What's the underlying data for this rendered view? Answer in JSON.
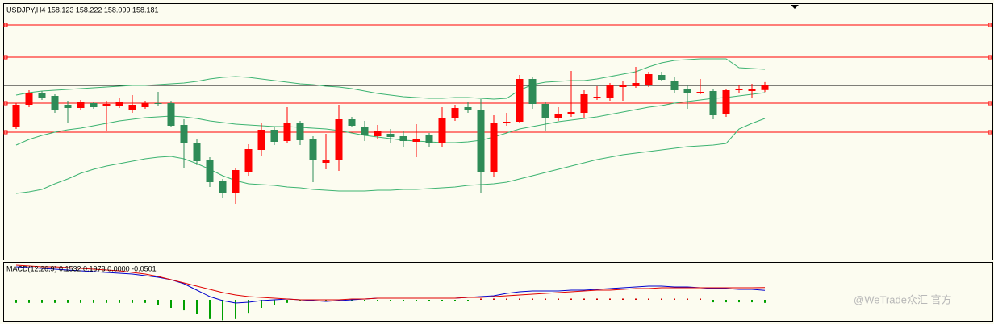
{
  "chart_data": [
    {
      "type": "candlestick",
      "title": "USDJPY,H4  158.123 158.222 158.099 158.181",
      "open": [
        157.661,
        157.941,
        158.081,
        158.051,
        157.941,
        157.901,
        157.961,
        157.931,
        157.931,
        157.881,
        157.911,
        157.961,
        157.961,
        157.691,
        157.471,
        157.251,
        156.991,
        156.841,
        157.111,
        157.381,
        157.631,
        157.491,
        157.721,
        157.511,
        157.221,
        157.251,
        157.761,
        157.671,
        157.551,
        157.581,
        157.551,
        157.481,
        157.561,
        157.461,
        157.781,
        157.911,
        157.871,
        157.101,
        157.711,
        157.731,
        158.261,
        157.951,
        157.771,
        157.831,
        157.841,
        158.031,
        158.021,
        158.161,
        158.171,
        158.181,
        158.311,
        158.241,
        158.131,
        158.091,
        158.111,
        157.821,
        158.121,
        158.111,
        158.123
      ],
      "high": [
        157.961,
        158.121,
        158.111,
        158.071,
        157.991,
        158.001,
        157.981,
        157.991,
        158.021,
        158.061,
        157.991,
        158.101,
        157.991,
        157.761,
        157.521,
        157.291,
        157.021,
        157.151,
        157.451,
        157.721,
        157.671,
        157.911,
        157.741,
        157.551,
        157.581,
        157.941,
        157.791,
        157.741,
        157.691,
        157.641,
        157.621,
        157.701,
        157.591,
        157.911,
        157.941,
        157.971,
        158.011,
        157.811,
        157.841,
        158.311,
        158.291,
        157.981,
        157.911,
        158.361,
        158.121,
        158.171,
        158.211,
        158.231,
        158.411,
        158.351,
        158.351,
        158.291,
        158.191,
        158.261,
        158.141,
        158.141,
        158.181,
        158.201,
        158.222
      ],
      "low": [
        157.641,
        157.911,
        158.001,
        157.841,
        157.721,
        157.871,
        157.891,
        157.621,
        157.901,
        157.841,
        157.891,
        157.931,
        157.661,
        157.161,
        157.191,
        156.921,
        156.781,
        156.711,
        157.061,
        157.311,
        157.441,
        157.461,
        157.441,
        156.981,
        157.141,
        157.121,
        157.661,
        157.491,
        157.521,
        157.461,
        157.421,
        157.291,
        157.411,
        157.411,
        157.741,
        157.841,
        156.841,
        157.041,
        157.681,
        157.711,
        157.891,
        157.621,
        157.741,
        157.791,
        157.781,
        158.001,
        157.991,
        157.991,
        158.151,
        158.161,
        158.231,
        158.091,
        157.891,
        158.071,
        157.761,
        157.791,
        158.091,
        158.021,
        158.099
      ],
      "close": [
        157.941,
        158.081,
        158.031,
        157.871,
        157.901,
        157.971,
        157.911,
        157.951,
        157.971,
        157.941,
        157.961,
        157.951,
        157.681,
        157.471,
        157.241,
        156.981,
        156.841,
        157.131,
        157.391,
        157.631,
        157.481,
        157.721,
        157.501,
        157.251,
        157.261,
        157.761,
        157.681,
        157.571,
        157.611,
        157.541,
        157.491,
        157.521,
        157.471,
        157.781,
        157.901,
        157.871,
        157.101,
        157.721,
        157.731,
        158.261,
        157.951,
        157.771,
        157.831,
        157.851,
        158.071,
        158.041,
        158.181,
        158.181,
        158.211,
        158.321,
        158.251,
        158.121,
        158.091,
        158.101,
        157.811,
        158.121,
        158.141,
        158.141,
        158.181
      ],
      "up_color": "#ff0000",
      "down_color": "#2e8b57",
      "bands": [
        {
          "color": "#3cb371",
          "values": [
            158.061,
            158.091,
            158.111,
            158.121,
            158.131,
            158.141,
            158.151,
            158.161,
            158.171,
            158.181,
            158.181,
            158.191,
            158.201,
            158.211,
            158.231,
            158.261,
            158.281,
            158.291,
            158.281,
            158.261,
            158.241,
            158.221,
            158.201,
            158.191,
            158.171,
            158.161,
            158.141,
            158.111,
            158.081,
            158.061,
            158.041,
            158.031,
            158.021,
            158.021,
            158.031,
            158.031,
            158.021,
            158.011,
            158.021,
            158.121,
            158.191,
            158.221,
            158.231,
            158.241,
            158.241,
            158.261,
            158.291,
            158.321,
            158.351,
            158.411,
            158.461,
            158.491,
            158.501,
            158.511,
            158.511,
            158.511,
            158.401,
            158.391,
            158.381
          ]
        },
        {
          "color": "#3cb371",
          "values": [
            157.441,
            157.511,
            157.561,
            157.601,
            157.631,
            157.651,
            157.681,
            157.711,
            157.741,
            157.761,
            157.781,
            157.791,
            157.801,
            157.791,
            157.771,
            157.741,
            157.721,
            157.701,
            157.691,
            157.681,
            157.671,
            157.671,
            157.661,
            157.651,
            157.641,
            157.621,
            157.591,
            157.561,
            157.541,
            157.521,
            157.501,
            157.491,
            157.481,
            157.471,
            157.471,
            157.481,
            157.501,
            157.541,
            157.591,
            157.641,
            157.671,
            157.701,
            157.731,
            157.751,
            157.771,
            157.791,
            157.821,
            157.851,
            157.881,
            157.911,
            157.931,
            157.961,
            157.981,
            158.001,
            158.021,
            158.031,
            158.051,
            158.071,
            158.091
          ]
        },
        {
          "color": "#3cb371",
          "values": [
            156.841,
            156.861,
            156.891,
            156.961,
            157.021,
            157.091,
            157.141,
            157.181,
            157.211,
            157.241,
            157.271,
            157.291,
            157.301,
            157.271,
            157.211,
            157.141,
            157.061,
            157.001,
            156.961,
            156.951,
            156.941,
            156.921,
            156.911,
            156.891,
            156.881,
            156.871,
            156.871,
            156.871,
            156.881,
            156.881,
            156.891,
            156.891,
            156.901,
            156.911,
            156.921,
            156.941,
            156.951,
            156.961,
            156.981,
            157.021,
            157.061,
            157.101,
            157.141,
            157.181,
            157.221,
            157.261,
            157.291,
            157.321,
            157.341,
            157.361,
            157.381,
            157.401,
            157.421,
            157.431,
            157.441,
            157.461,
            157.641,
            157.711,
            157.771
          ]
        }
      ],
      "levels": [
        158.931,
        158.531,
        157.961,
        157.601
      ],
      "levels_color": "#ff0000",
      "bid": 158.181,
      "bid_color": "#000000",
      "ylim": [
        156.021,
        159.161
      ]
    },
    {
      "type": "macd",
      "title": "MACD(12,26,9) 0.1532 0.1978 0.0000 -0.0501",
      "histogram": [
        -0.05,
        -0.05,
        -0.05,
        -0.05,
        -0.05,
        -0.05,
        -0.05,
        -0.05,
        -0.05,
        -0.05,
        -0.05,
        -0.08,
        -0.13,
        -0.17,
        -0.23,
        -0.31,
        -0.33,
        -0.31,
        -0.21,
        -0.13,
        -0.08,
        -0.05,
        -0.02,
        -0.02,
        -0.02,
        -0.02,
        -0.02,
        -0.02,
        -0.02,
        -0.02,
        -0.02,
        -0.02,
        -0.02,
        -0.02,
        -0.02,
        -0.02,
        0.02,
        0.02,
        0.02,
        0.02,
        0.02,
        0.02,
        0.02,
        0.02,
        0.02,
        0.02,
        0.02,
        0.02,
        0.02,
        0.02,
        0.02,
        0.02,
        0.02,
        0.02,
        -0.04,
        -0.04,
        -0.04,
        -0.04,
        -0.0501
      ],
      "up_color": "#d00000",
      "down_color": "#00a000",
      "series": [
        {
          "color": "#0000cc",
          "values": [
            0.533,
            0.52,
            0.507,
            0.494,
            0.481,
            0.468,
            0.455,
            0.442,
            0.429,
            0.416,
            0.39,
            0.364,
            0.325,
            0.26,
            0.156,
            0.052,
            -0.013,
            -0.052,
            -0.039,
            -0.013,
            0,
            0.013,
            0,
            -0.013,
            -0.026,
            -0.013,
            0,
            0.013,
            0.026,
            0.026,
            0.026,
            0.026,
            0.026,
            0.026,
            0.026,
            0.039,
            0.052,
            0.065,
            0.104,
            0.13,
            0.143,
            0.143,
            0.143,
            0.156,
            0.156,
            0.169,
            0.182,
            0.195,
            0.208,
            0.221,
            0.221,
            0.208,
            0.208,
            0.195,
            0.182,
            0.182,
            0.169,
            0.169,
            0.1532
          ]
        },
        {
          "color": "#e00000",
          "values": [
            0.559,
            0.546,
            0.533,
            0.533,
            0.52,
            0.507,
            0.494,
            0.481,
            0.468,
            0.442,
            0.416,
            0.377,
            0.325,
            0.273,
            0.221,
            0.169,
            0.117,
            0.078,
            0.052,
            0.039,
            0.026,
            0.013,
            0,
            0,
            0,
            0,
            0.013,
            0.013,
            0.026,
            0.026,
            0.026,
            0.026,
            0.026,
            0.026,
            0.026,
            0.039,
            0.039,
            0.052,
            0.065,
            0.078,
            0.091,
            0.104,
            0.117,
            0.13,
            0.143,
            0.156,
            0.156,
            0.169,
            0.182,
            0.182,
            0.195,
            0.195,
            0.195,
            0.195,
            0.195,
            0.195,
            0.195,
            0.195,
            0.1978
          ]
        }
      ],
      "ylim": [
        -0.338,
        0.585
      ]
    }
  ],
  "watermark": "@WeTrade众汇 官方"
}
